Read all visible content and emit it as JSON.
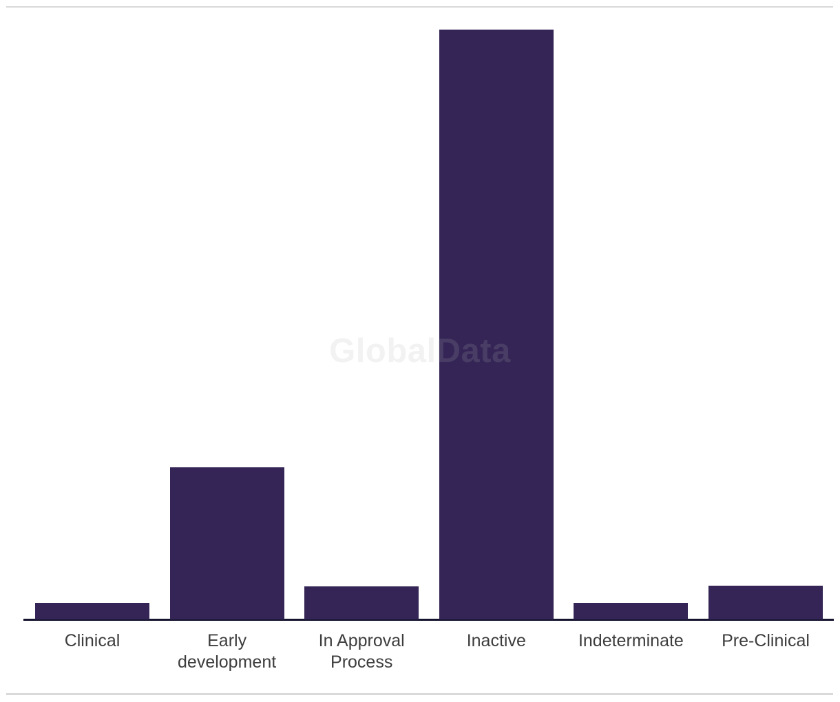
{
  "page": {
    "background": "#ffffff",
    "divider_color": "#d9d9d9"
  },
  "chart_data": {
    "type": "bar",
    "title": "",
    "xlabel": "",
    "ylabel": "",
    "categories": [
      "Clinical",
      "Early development",
      "In Approval Process",
      "Inactive",
      "Indeterminate",
      "Pre-Clinical"
    ],
    "values": [
      24,
      221,
      48,
      857,
      24,
      49
    ],
    "ylim": [
      0,
      857
    ],
    "grid": false,
    "legend_position": "none",
    "value_axis_labels": "hidden",
    "bar_color": "#342556",
    "axis_color": "#14142e",
    "label_color": "#3d3d3d",
    "watermark": "GlobalData",
    "watermark_color": "rgba(178,178,178,0.17)"
  }
}
